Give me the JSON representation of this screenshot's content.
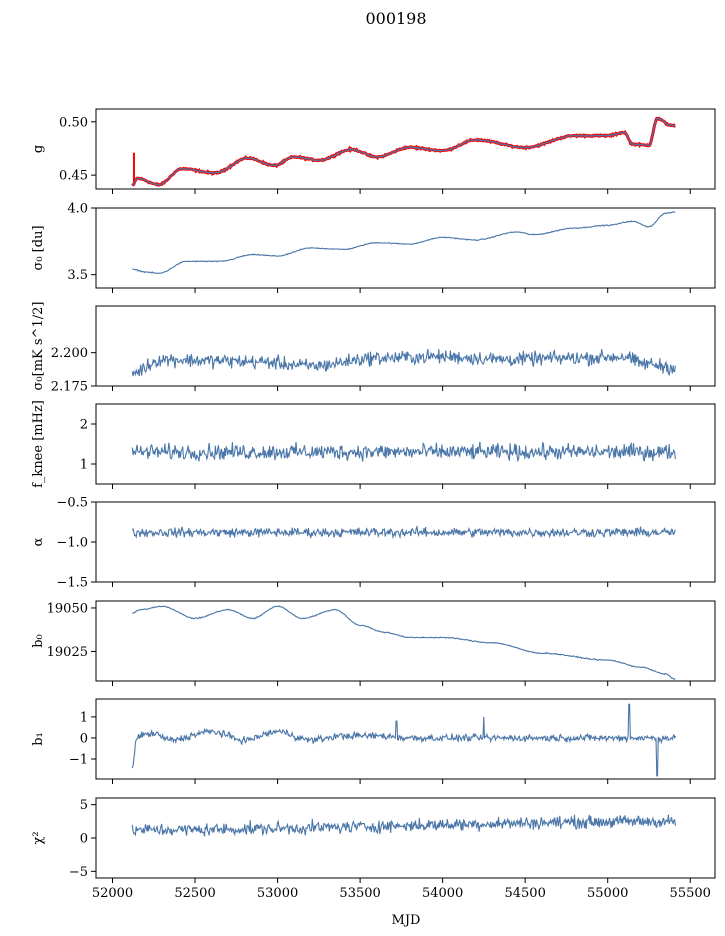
{
  "chart_data": {
    "title": "000198",
    "type": "line",
    "xlabel": "MJD",
    "xlim": [
      51900,
      55650
    ],
    "xticks": [
      52000,
      52500,
      53000,
      53500,
      54000,
      54500,
      55000,
      55500
    ],
    "x_start": 52120,
    "x_end": 55410,
    "series_color": "#4a76a8",
    "fit_color": "#ff0000",
    "panels": [
      {
        "name": "g-panel",
        "ylabel": "g",
        "ylim": [
          0.437,
          0.512
        ],
        "yticks": [
          0.45,
          0.5
        ],
        "ytick_labels": [
          "0.45",
          "0.50"
        ],
        "keypoints": [
          [
            52120,
            0.44
          ],
          [
            52150,
            0.447
          ],
          [
            52280,
            0.441
          ],
          [
            52420,
            0.456
          ],
          [
            52620,
            0.452
          ],
          [
            52820,
            0.466
          ],
          [
            52980,
            0.459
          ],
          [
            53100,
            0.467
          ],
          [
            53250,
            0.464
          ],
          [
            53450,
            0.474
          ],
          [
            53600,
            0.467
          ],
          [
            53800,
            0.476
          ],
          [
            54000,
            0.473
          ],
          [
            54200,
            0.483
          ],
          [
            54500,
            0.476
          ],
          [
            54800,
            0.487
          ],
          [
            55000,
            0.487
          ],
          [
            55100,
            0.49
          ],
          [
            55150,
            0.479
          ],
          [
            55250,
            0.478
          ],
          [
            55300,
            0.503
          ],
          [
            55380,
            0.497
          ],
          [
            55410,
            0.496
          ]
        ],
        "wiggle": 0.0006,
        "fit_overlay": true,
        "spike": {
          "x": 52130,
          "low": 0.44,
          "high": 0.471
        }
      },
      {
        "name": "sigma0-du-panel",
        "ylabel": "σ₀ [du]",
        "ylim": [
          3.4,
          4.0
        ],
        "yticks": [
          3.5,
          4.0
        ],
        "ytick_labels": [
          "3.5",
          "4.0"
        ],
        "keypoints": [
          [
            52120,
            3.54
          ],
          [
            52200,
            3.52
          ],
          [
            52280,
            3.51
          ],
          [
            52450,
            3.6
          ],
          [
            52650,
            3.6
          ],
          [
            52850,
            3.65
          ],
          [
            53000,
            3.64
          ],
          [
            53200,
            3.7
          ],
          [
            53400,
            3.69
          ],
          [
            53600,
            3.74
          ],
          [
            53800,
            3.73
          ],
          [
            54000,
            3.78
          ],
          [
            54200,
            3.76
          ],
          [
            54450,
            3.82
          ],
          [
            54550,
            3.8
          ],
          [
            54800,
            3.85
          ],
          [
            55000,
            3.87
          ],
          [
            55150,
            3.9
          ],
          [
            55250,
            3.86
          ],
          [
            55350,
            3.96
          ],
          [
            55410,
            3.97
          ]
        ],
        "wiggle": 0.003
      },
      {
        "name": "sigma0-mks-panel",
        "ylabel": "σ₀[mK s^1/2]",
        "ylim": [
          2.175,
          2.235
        ],
        "yticks": [
          2.175,
          2.2
        ],
        "ytick_labels": [
          "2.175",
          "2.200"
        ],
        "keypoints": [
          [
            52120,
            2.185
          ],
          [
            52300,
            2.195
          ],
          [
            52600,
            2.194
          ],
          [
            52900,
            2.193
          ],
          [
            53200,
            2.19
          ],
          [
            53600,
            2.196
          ],
          [
            54000,
            2.197
          ],
          [
            54400,
            2.195
          ],
          [
            54800,
            2.196
          ],
          [
            55100,
            2.197
          ],
          [
            55200,
            2.192
          ],
          [
            55410,
            2.189
          ]
        ],
        "wiggle": 0.0045
      },
      {
        "name": "fknee-panel",
        "ylabel": "f_knee [mHz]",
        "ylim": [
          0.5,
          2.5
        ],
        "yticks": [
          1,
          2
        ],
        "ytick_labels": [
          "1",
          "2"
        ],
        "keypoints": [
          [
            52120,
            1.3
          ],
          [
            55410,
            1.3
          ]
        ],
        "wiggle": 0.17
      },
      {
        "name": "alpha-panel",
        "ylabel": "α",
        "ylim": [
          -1.5,
          -0.5
        ],
        "yticks": [
          -1.5,
          -1.0,
          -0.5
        ],
        "ytick_labels": [
          "−1.5",
          "−1.0",
          "−0.5"
        ],
        "keypoints": [
          [
            52120,
            -0.88
          ],
          [
            55410,
            -0.88
          ]
        ],
        "wiggle": 0.05
      },
      {
        "name": "b0-panel",
        "ylabel": "b₀",
        "ylim": [
          19008,
          19054
        ],
        "yticks": [
          19025,
          19050
        ],
        "ytick_labels": [
          "19025",
          "19050"
        ],
        "keypoints": [
          [
            52120,
            19047
          ],
          [
            52170,
            19049
          ],
          [
            52300,
            19051
          ],
          [
            52500,
            19044
          ],
          [
            52700,
            19049
          ],
          [
            52850,
            19044
          ],
          [
            53000,
            19051
          ],
          [
            53150,
            19044
          ],
          [
            53350,
            19049
          ],
          [
            53500,
            19040
          ],
          [
            53650,
            19036
          ],
          [
            53800,
            19033
          ],
          [
            54000,
            19033
          ],
          [
            54300,
            19030
          ],
          [
            54600,
            19024
          ],
          [
            55000,
            19020
          ],
          [
            55200,
            19016
          ],
          [
            55350,
            19012
          ],
          [
            55410,
            19009
          ]
        ],
        "wiggle": 0.25
      },
      {
        "name": "b1-panel",
        "ylabel": "b₁",
        "ylim": [
          -1.95,
          1.85
        ],
        "yticks": [
          -1,
          0,
          1
        ],
        "ytick_labels": [
          "−1",
          "0",
          "1"
        ],
        "keypoints": [
          [
            52120,
            -1.4
          ],
          [
            52150,
            0.1
          ],
          [
            52250,
            0.2
          ],
          [
            52350,
            -0.1
          ],
          [
            52600,
            0.3
          ],
          [
            52800,
            -0.1
          ],
          [
            53000,
            0.3
          ],
          [
            53200,
            -0.1
          ],
          [
            53400,
            0.1
          ],
          [
            53600,
            0.1
          ],
          [
            53800,
            0.0
          ],
          [
            55410,
            0.0
          ]
        ],
        "wiggle": 0.14,
        "spikes": [
          [
            53720,
            0.8
          ],
          [
            54250,
            1.0
          ],
          [
            55130,
            1.6
          ],
          [
            55300,
            -1.8
          ]
        ]
      },
      {
        "name": "chi2-panel",
        "ylabel": "χ²",
        "ylim": [
          -6,
          6
        ],
        "yticks": [
          -5,
          0,
          5
        ],
        "ytick_labels": [
          "−5",
          "0",
          "5"
        ],
        "keypoints": [
          [
            52120,
            1.2
          ],
          [
            55410,
            2.5
          ]
        ],
        "wiggle": 0.8
      }
    ]
  }
}
